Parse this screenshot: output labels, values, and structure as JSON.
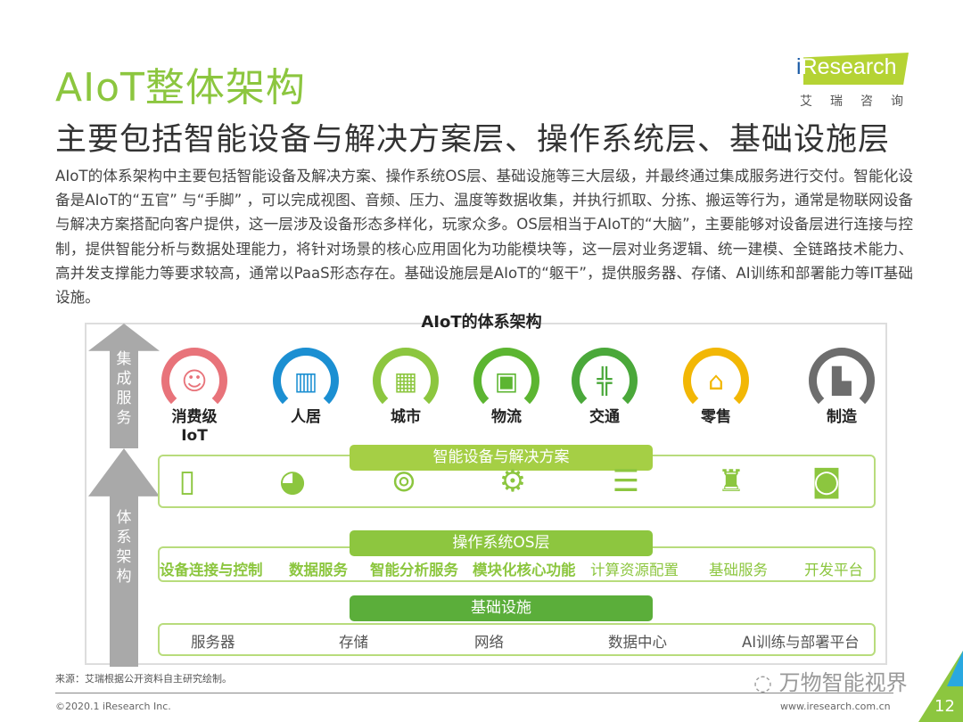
{
  "header": {
    "title": "AIoT整体架构",
    "subtitle": "主要包括智能设备与解决方案层、操作系统层、基础设施层"
  },
  "logo": {
    "brand": "iResearch",
    "chinese": "艾瑞咨询"
  },
  "paragraph": "AIoT的体系架构中主要包括智能设备及解决方案、操作系统OS层、基础设施等三大层级，并最终通过集成服务进行交付。智能化设备是AIoT的“五官” 与“手脚” ，可以完成视图、音频、压力、温度等数据收集，并执行抓取、分拣、搬运等行为，通常是物联网设备与解决方案搭配向客户提供，这一层涉及设备形态多样化，玩家众多。OS层相当于AIoT的“大脑”，主要能够对设备层进行连接与控制，提供智能分析与数据处理能力，将针对场景的核心应用固化为功能模块等，这一层对业务逻辑、统一建模、全链路技术能力、高并发支撑能力等要求较高，通常以PaaS形态存在。基础设施层是AIoT的“躯干”，提供服务器、存储、AI训练和部署能力等IT基础设施。",
  "diagram": {
    "title": "AIoT的体系架构",
    "arrow_top": "集成服务",
    "arrow_bottom": "体系架构",
    "scenarios": [
      {
        "label": "消费级IoT",
        "icon": "person-icon",
        "color": "#e8737a"
      },
      {
        "label": "人居",
        "icon": "building-icon",
        "color": "#1b8fd2"
      },
      {
        "label": "城市",
        "icon": "city-icon",
        "color": "#8cc63f"
      },
      {
        "label": "物流",
        "icon": "conveyor-icon",
        "color": "#5cb531"
      },
      {
        "label": "交通",
        "icon": "road-icon",
        "color": "#4aa83a"
      },
      {
        "label": "零售",
        "icon": "store-icon",
        "color": "#f2b705"
      },
      {
        "label": "制造",
        "icon": "factory-icon",
        "color": "#6d6d6d"
      }
    ],
    "layer1": {
      "title": "智能设备与解决方案",
      "devices": [
        "phone-icon",
        "camera-icon",
        "robot-vehicle-icon",
        "robot-arm-icon",
        "server-icon",
        "robot-icon",
        "lock-icon"
      ]
    },
    "layer2": {
      "title": "操作系统OS层",
      "items": [
        "设备连接与控制",
        "数据服务",
        "智能分析服务",
        "模块化核心功能",
        "计算资源配置",
        "基础服务",
        "开发平台"
      ]
    },
    "layer3": {
      "title": "基础设施",
      "items": [
        "服务器",
        "存储",
        "网络",
        "数据中心",
        "AI训练与部署平台"
      ]
    },
    "colors": {
      "layer1": "#a5cf45",
      "layer2": "#8dc63f",
      "layer3": "#5bae3a"
    }
  },
  "footer": {
    "source": "来源：艾瑞根据公开资料自主研究绘制。",
    "watermark": "万物智能视界",
    "copyright": "©2020.1 iResearch Inc.",
    "url": "www.iresearch.com.cn",
    "page": "12"
  }
}
